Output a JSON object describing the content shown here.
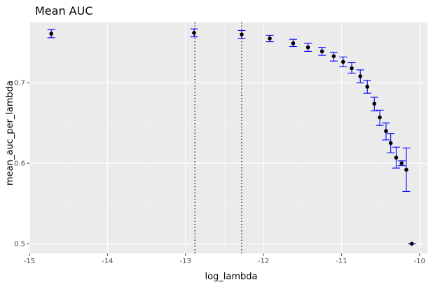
{
  "chart_data": {
    "type": "scatter",
    "title": "Mean AUC",
    "xlabel": "log_lambda",
    "ylabel": "mean_auc_per_lambda",
    "xlim": [
      -15.0,
      -9.9
    ],
    "ylim": [
      0.488,
      0.775
    ],
    "x_ticks": [
      -15,
      -14,
      -13,
      -12,
      -11,
      -10
    ],
    "y_ticks": [
      0.5,
      0.6,
      0.7
    ],
    "x_tick_labels": [
      "-15",
      "-14",
      "-13",
      "-12",
      "-11",
      "-10"
    ],
    "y_tick_labels": [
      "0.5",
      "0.6",
      "0.7"
    ],
    "grid": true,
    "vlines": [
      -12.88,
      -12.28
    ],
    "points": [
      {
        "x": -14.72,
        "y": 0.761,
        "ymin": 0.756,
        "ymax": 0.766
      },
      {
        "x": -12.89,
        "y": 0.762,
        "ymin": 0.757,
        "ymax": 0.767
      },
      {
        "x": -12.28,
        "y": 0.76,
        "ymin": 0.755,
        "ymax": 0.765
      },
      {
        "x": -11.92,
        "y": 0.755,
        "ymin": 0.751,
        "ymax": 0.759
      },
      {
        "x": -11.62,
        "y": 0.749,
        "ymin": 0.745,
        "ymax": 0.754
      },
      {
        "x": -11.43,
        "y": 0.744,
        "ymin": 0.739,
        "ymax": 0.749
      },
      {
        "x": -11.25,
        "y": 0.739,
        "ymin": 0.734,
        "ymax": 0.744
      },
      {
        "x": -11.1,
        "y": 0.733,
        "ymin": 0.727,
        "ymax": 0.738
      },
      {
        "x": -10.98,
        "y": 0.726,
        "ymin": 0.72,
        "ymax": 0.732
      },
      {
        "x": -10.87,
        "y": 0.718,
        "ymin": 0.712,
        "ymax": 0.725
      },
      {
        "x": -10.76,
        "y": 0.708,
        "ymin": 0.7,
        "ymax": 0.716
      },
      {
        "x": -10.67,
        "y": 0.695,
        "ymin": 0.687,
        "ymax": 0.703
      },
      {
        "x": -10.58,
        "y": 0.674,
        "ymin": 0.665,
        "ymax": 0.682
      },
      {
        "x": -10.51,
        "y": 0.657,
        "ymin": 0.647,
        "ymax": 0.666
      },
      {
        "x": -10.43,
        "y": 0.64,
        "ymin": 0.629,
        "ymax": 0.65
      },
      {
        "x": -10.37,
        "y": 0.625,
        "ymin": 0.613,
        "ymax": 0.637
      },
      {
        "x": -10.3,
        "y": 0.607,
        "ymin": 0.594,
        "ymax": 0.62
      },
      {
        "x": -10.23,
        "y": 0.6,
        "ymin": 0.597,
        "ymax": 0.603
      },
      {
        "x": -10.17,
        "y": 0.592,
        "ymin": 0.565,
        "ymax": 0.619
      },
      {
        "x": -10.1,
        "y": 0.5,
        "ymin": 0.5,
        "ymax": 0.5
      }
    ],
    "colors": {
      "panel": "#ebebeb",
      "grid_major": "#ffffff",
      "grid_minor": "#f5f5f5",
      "point": "#000000",
      "errorbar": "#0000ff",
      "vline": "#000000",
      "tick": "#333333"
    }
  }
}
